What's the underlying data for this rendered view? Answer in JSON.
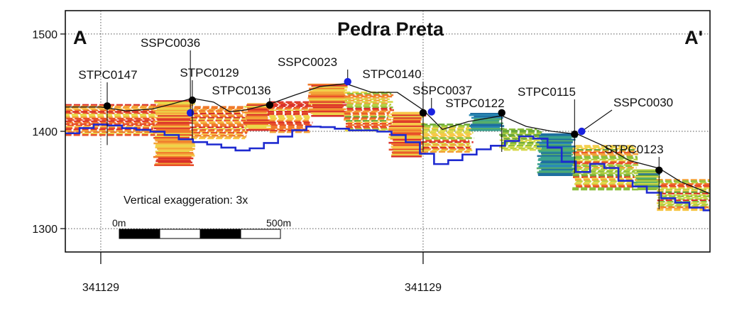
{
  "chart_data": {
    "type": "scatter",
    "title": "Pedra Preta",
    "section_start_label": "A",
    "section_end_label": "A'",
    "xlabel": "",
    "ylabel": "",
    "x_ticks": [
      {
        "value": 0,
        "label": "341129"
      },
      {
        "value": 500,
        "label": "341129"
      }
    ],
    "y_ticks": [
      1300,
      1400,
      1500
    ],
    "xlim": [
      -55,
      945
    ],
    "ylim": [
      1276,
      1524
    ],
    "grid": true,
    "annotation": "Vertical exaggeration: 3x",
    "scale_bar": {
      "start_label": "0m",
      "end_label": "500m",
      "length": 500
    },
    "drillholes": [
      {
        "name": "STPC0147",
        "type": "STPC",
        "x": 10,
        "y": 1426
      },
      {
        "name": "SSPC0036",
        "type": "SSPC",
        "x": 142,
        "y": 1432
      },
      {
        "name": "STPC0129",
        "type": "STPC",
        "x": 142,
        "y": 1432
      },
      {
        "name": "STPC0136",
        "type": "STPC",
        "x": 262,
        "y": 1427
      },
      {
        "name": "SSPC0023",
        "type": "SSPC",
        "x": 380,
        "y": 1450
      },
      {
        "name": "STPC0140",
        "type": "STPC",
        "x": 500,
        "y": 1419
      },
      {
        "name": "SSPC0037",
        "type": "SSPC",
        "x": 520,
        "y": 1420
      },
      {
        "name": "STPC0122",
        "type": "STPC",
        "x": 622,
        "y": 1419
      },
      {
        "name": "STPC0115",
        "type": "STPC",
        "x": 735,
        "y": 1397
      },
      {
        "name": "SSPC0030",
        "type": "SSPC",
        "x": 743,
        "y": 1399
      },
      {
        "name": "STPC0123",
        "type": "STPC",
        "x": 866,
        "y": 1360
      }
    ],
    "topography": [
      [
        -55,
        1425
      ],
      [
        0,
        1425
      ],
      [
        40,
        1421
      ],
      [
        80,
        1423
      ],
      [
        110,
        1428
      ],
      [
        142,
        1434
      ],
      [
        175,
        1430
      ],
      [
        200,
        1420
      ],
      [
        225,
        1422
      ],
      [
        262,
        1428
      ],
      [
        300,
        1437
      ],
      [
        340,
        1446
      ],
      [
        380,
        1449
      ],
      [
        420,
        1440
      ],
      [
        460,
        1440
      ],
      [
        500,
        1422
      ],
      [
        530,
        1402
      ],
      [
        570,
        1410
      ],
      [
        622,
        1416
      ],
      [
        660,
        1405
      ],
      [
        700,
        1400
      ],
      [
        740,
        1397
      ],
      [
        780,
        1385
      ],
      [
        820,
        1370
      ],
      [
        866,
        1362
      ],
      [
        900,
        1348
      ],
      [
        945,
        1336
      ]
    ],
    "pit_shell": [
      [
        -55,
        1398
      ],
      [
        -35,
        1403
      ],
      [
        -5,
        1408
      ],
      [
        35,
        1403
      ],
      [
        75,
        1400
      ],
      [
        95,
        1397
      ],
      [
        120,
        1392
      ],
      [
        150,
        1388
      ],
      [
        180,
        1385
      ],
      [
        200,
        1380
      ],
      [
        225,
        1381
      ],
      [
        245,
        1386
      ],
      [
        265,
        1391
      ],
      [
        290,
        1400
      ],
      [
        320,
        1405
      ],
      [
        350,
        1404
      ],
      [
        380,
        1401
      ],
      [
        410,
        1401
      ],
      [
        440,
        1399
      ],
      [
        460,
        1394
      ],
      [
        480,
        1386
      ],
      [
        500,
        1374
      ],
      [
        520,
        1365
      ],
      [
        545,
        1372
      ],
      [
        580,
        1381
      ],
      [
        610,
        1386
      ],
      [
        635,
        1392
      ],
      [
        660,
        1397
      ],
      [
        680,
        1389
      ],
      [
        700,
        1380
      ],
      [
        720,
        1365
      ],
      [
        740,
        1357
      ],
      [
        760,
        1367
      ],
      [
        780,
        1363
      ],
      [
        800,
        1350
      ],
      [
        830,
        1342
      ],
      [
        860,
        1333
      ],
      [
        890,
        1327
      ],
      [
        920,
        1320
      ],
      [
        945,
        1318
      ]
    ],
    "legend": []
  }
}
